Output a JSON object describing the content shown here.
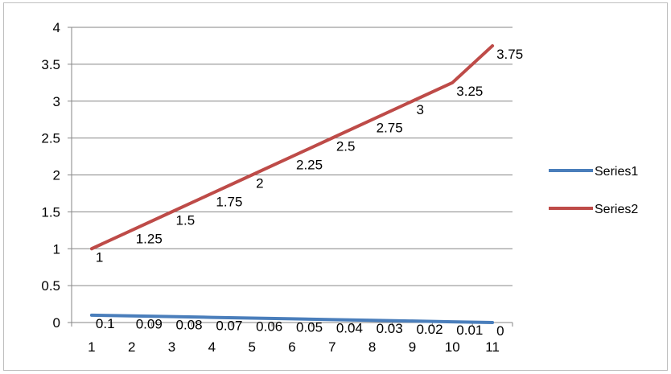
{
  "chart_data": {
    "type": "line",
    "title": "",
    "xlabel": "",
    "ylabel": "",
    "x": [
      1,
      2,
      3,
      4,
      5,
      6,
      7,
      8,
      9,
      10,
      11
    ],
    "x_tick_labels": [
      "1",
      "2",
      "3",
      "4",
      "5",
      "6",
      "7",
      "8",
      "9",
      "10",
      "11"
    ],
    "ylim": [
      0,
      4
    ],
    "y_tick_labels": [
      "0",
      "0.5",
      "1",
      "1.5",
      "2",
      "2.5",
      "3",
      "3.5",
      "4"
    ],
    "y_ticks": [
      0,
      0.5,
      1,
      1.5,
      2,
      2.5,
      3,
      3.5,
      4
    ],
    "grid": true,
    "legend_position": "right",
    "series": [
      {
        "name": "Series1",
        "color": "#4a7ebb",
        "values": [
          0.1,
          0.09,
          0.08,
          0.07,
          0.06,
          0.05,
          0.04,
          0.03,
          0.02,
          0.01,
          0
        ],
        "labels": [
          "0.1",
          "0.09",
          "0.08",
          "0.07",
          "0.06",
          "0.05",
          "0.04",
          "0.03",
          "0.02",
          "0.01",
          "0"
        ]
      },
      {
        "name": "Series2",
        "color": "#be4b48",
        "values": [
          1,
          1.25,
          1.5,
          1.75,
          2,
          2.25,
          2.5,
          2.75,
          3,
          3.25,
          3.75
        ],
        "labels": [
          "1",
          "1.25",
          "1.5",
          "1.75",
          "2",
          "2.25",
          "2.5",
          "2.75",
          "3",
          "3.25",
          "3.75"
        ]
      }
    ]
  }
}
